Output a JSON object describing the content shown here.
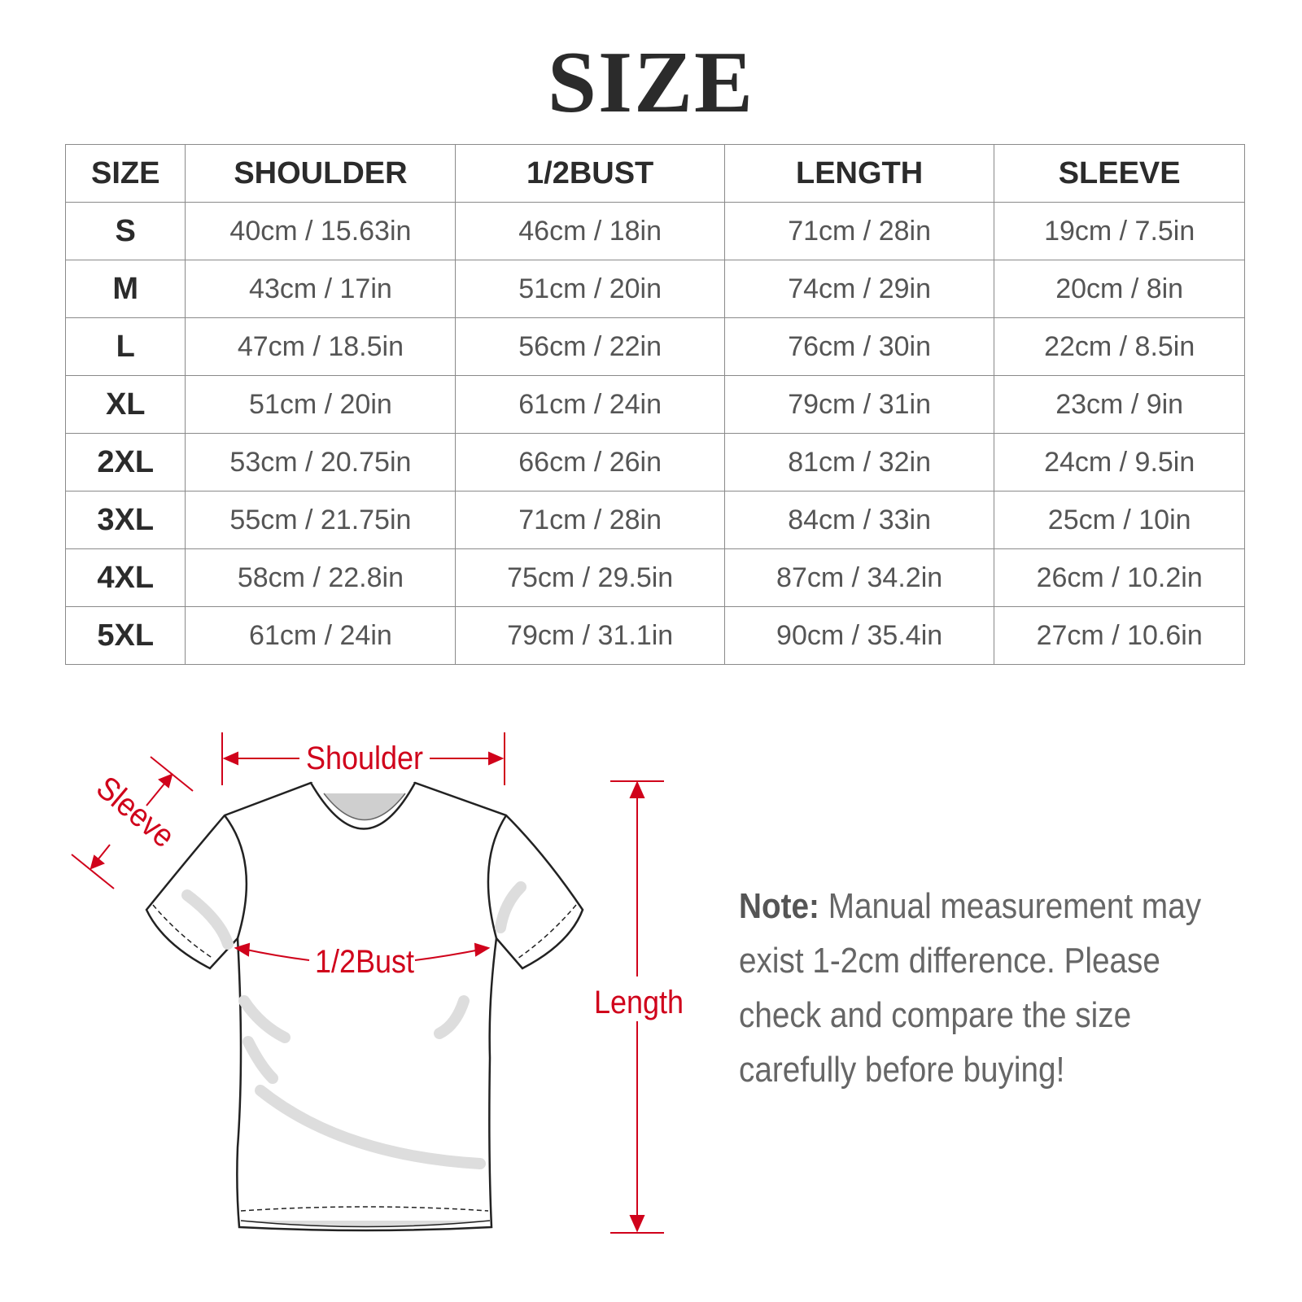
{
  "title": "SIZE",
  "table": {
    "headers": [
      "SIZE",
      "SHOULDER",
      "1/2BUST",
      "LENGTH",
      "SLEEVE"
    ],
    "rows": [
      [
        "S",
        "40cm / 15.63in",
        "46cm / 18in",
        "71cm / 28in",
        "19cm / 7.5in"
      ],
      [
        "M",
        "43cm / 17in",
        "51cm / 20in",
        "74cm / 29in",
        "20cm / 8in"
      ],
      [
        "L",
        "47cm / 18.5in",
        "56cm / 22in",
        "76cm / 30in",
        "22cm / 8.5in"
      ],
      [
        "XL",
        "51cm / 20in",
        "61cm / 24in",
        "79cm / 31in",
        "23cm / 9in"
      ],
      [
        "2XL",
        "53cm / 20.75in",
        "66cm / 26in",
        "81cm / 32in",
        "24cm / 9.5in"
      ],
      [
        "3XL",
        "55cm / 21.75in",
        "71cm / 28in",
        "84cm / 33in",
        "25cm / 10in"
      ],
      [
        "4XL",
        "58cm / 22.8in",
        "75cm / 29.5in",
        "87cm / 34.2in",
        "26cm / 10.2in"
      ],
      [
        "5XL",
        "61cm / 24in",
        "79cm / 31.1in",
        "90cm / 35.4in",
        "27cm / 10.6in"
      ]
    ]
  },
  "diagram": {
    "shoulder_label": "Shoulder",
    "sleeve_label": "Sleeve",
    "bust_label": "1/2Bust",
    "length_label": "Length",
    "annotation_color": "#d0021b",
    "icon": "t-shirt-icon"
  },
  "note": {
    "label": "Note:",
    "text": " Manual measurement may exist 1-2cm difference. Please check and compare the size carefully before buying!"
  }
}
